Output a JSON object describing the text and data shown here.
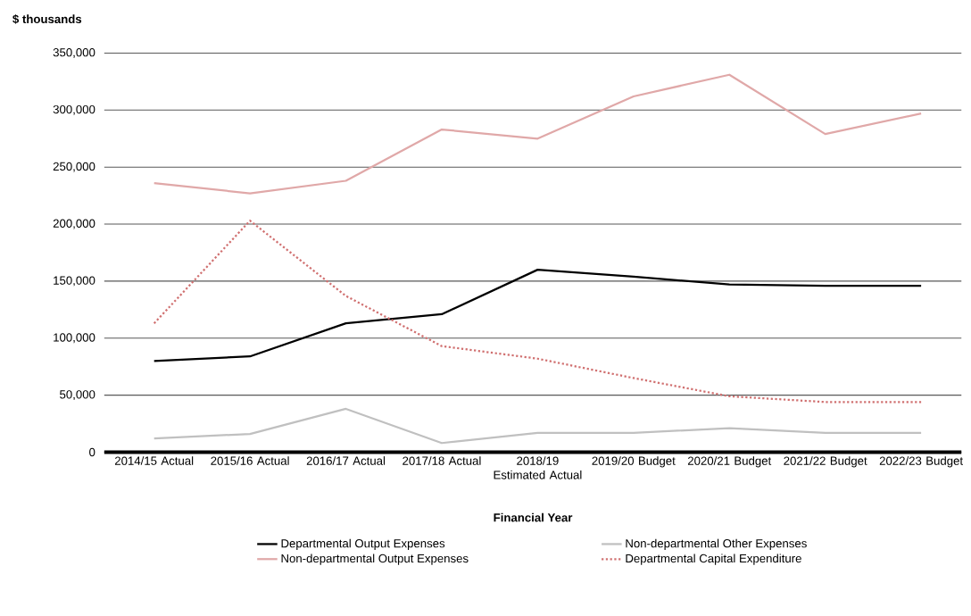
{
  "chart_data": {
    "type": "line",
    "ylabel": "$ thousands",
    "xlabel": "Financial Year",
    "categories": [
      "2014/15 Actual",
      "2015/16 Actual",
      "2016/17 Actual",
      "2017/18 Actual",
      "2018/19 Estimated Actual",
      "2019/20 Budget",
      "2020/21 Budget",
      "2021/22 Budget",
      "2022/23 Budget"
    ],
    "series": [
      {
        "name": "Departmental Output Expenses",
        "color": "#000000",
        "line_style": "solid",
        "values": [
          80000,
          84000,
          113000,
          121000,
          160000,
          154000,
          147000,
          146000,
          146000
        ]
      },
      {
        "name": "Non-departmental Other Expenses",
        "color": "#c0c0c0",
        "line_style": "solid",
        "values": [
          12000,
          16000,
          38000,
          8000,
          17000,
          17000,
          21000,
          17000,
          17000
        ]
      },
      {
        "name": "Non-departmental Output Expenses",
        "color": "#e0a8a8",
        "line_style": "solid",
        "values": [
          236000,
          227000,
          238000,
          283000,
          275000,
          312000,
          331000,
          279000,
          297000
        ]
      },
      {
        "name": "Departmental Capital Expenditure",
        "color": "#d07070",
        "line_style": "dotted",
        "values": [
          113000,
          203000,
          137000,
          93000,
          82000,
          65000,
          49000,
          44000,
          44000
        ]
      }
    ],
    "ylim": [
      0,
      350000
    ],
    "yticks": [
      0,
      {
        "value": 50000,
        "label": "50,000"
      },
      {
        "value": 100000,
        "label": "100,000"
      },
      {
        "value": 150000,
        "label": "150,000"
      },
      {
        "value": 200000,
        "label": "200,000"
      },
      {
        "value": 250000,
        "label": "250,000"
      },
      {
        "value": 300000,
        "label": "300,000"
      },
      {
        "value": 350000,
        "label": "350,000"
      }
    ],
    "grid": "y",
    "legend": "bottom",
    "marker": "none"
  }
}
